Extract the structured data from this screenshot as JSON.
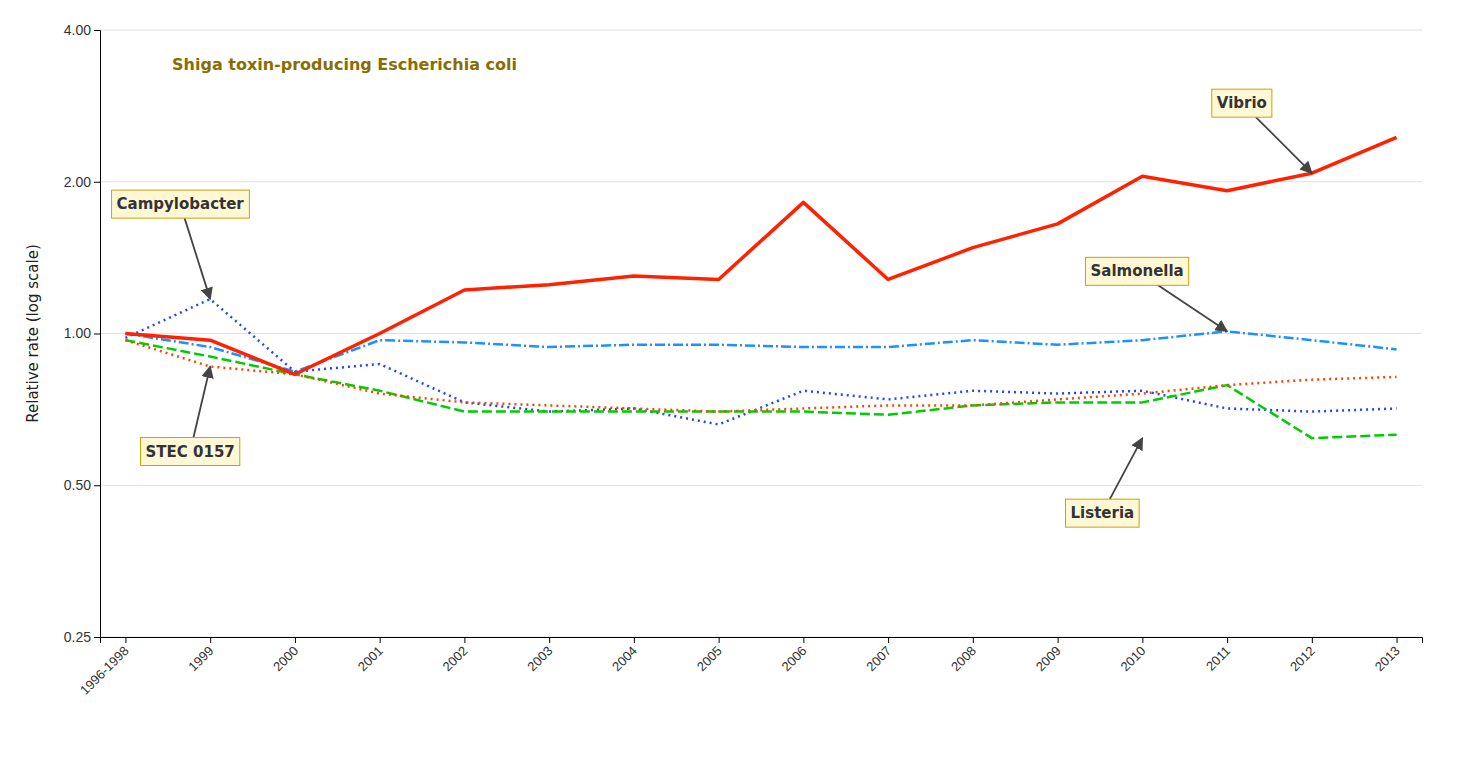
{
  "chart_data": {
    "type": "line",
    "ylabel": "Relative rate (log scale)",
    "categories": [
      "1996-1998",
      "1999",
      "2000",
      "2001",
      "2002",
      "2003",
      "2004",
      "2005",
      "2006",
      "2007",
      "2008",
      "2009",
      "2010",
      "2011",
      "2012",
      "2013"
    ],
    "series": [
      {
        "color": "#1e90ff",
        "line_style": "dashdot",
        "values": [
          1.0,
          0.94,
          0.84,
          0.97,
          0.96,
          0.94,
          0.95,
          0.95,
          0.94,
          0.94,
          0.97,
          0.95,
          0.97,
          1.01,
          0.97,
          0.93
        ]
      },
      {
        "color": "#2244ff",
        "line_style": "dotted",
        "values": [
          0.98,
          1.17,
          0.84,
          0.87,
          0.73,
          0.7,
          0.71,
          0.66,
          0.77,
          0.74,
          0.77,
          0.76,
          0.77,
          0.71,
          0.7,
          0.71
        ]
      },
      {
        "color": "#00cc00",
        "line_style": "dashed",
        "values": [
          0.97,
          0.9,
          0.83,
          0.77,
          0.7,
          0.7,
          0.7,
          0.7,
          0.7,
          0.69,
          0.72,
          0.73,
          0.73,
          0.79,
          0.62,
          0.63
        ]
      },
      {
        "color": "#ff4400",
        "line_style": "dotted",
        "values": [
          0.97,
          0.86,
          0.83,
          0.76,
          0.73,
          0.72,
          0.71,
          0.7,
          0.71,
          0.72,
          0.72,
          0.74,
          0.76,
          0.79,
          0.81,
          0.82
        ]
      },
      {
        "color": "#ff2200",
        "line_style": "solid",
        "values": [
          1.0,
          0.97,
          0.83,
          1.0,
          1.22,
          1.25,
          1.3,
          1.28,
          1.82,
          1.28,
          1.48,
          1.65,
          2.05,
          1.92,
          2.08,
          2.45
        ]
      }
    ],
    "log": "y",
    "ylim": [
      0.25,
      4.0
    ],
    "yticks": [
      0.25,
      {
        "value": 0.5,
        "label": "0.50"
      },
      {
        "value": 1.0,
        "label": "1.00"
      },
      {
        "value": 2.0,
        "label": "2.00"
      },
      {
        "value": 4.0,
        "label": "4.00"
      }
    ],
    "grid": true,
    "annotations": [
      {
        "text": "Shiga toxin-producing Escherichia coli"
      },
      {
        "text": "Vibrio",
        "x": "2012",
        "y": 2.08
      },
      {
        "text": "STEC 0157",
        "x": "1999",
        "y": 0.86
      },
      {
        "text": "Campylobacter",
        "x": "1999",
        "y": 1.17
      },
      {
        "text": "Salmonella",
        "x": "2011",
        "y": 1.01
      },
      {
        "text": "Listeria",
        "x": "2010",
        "y": 0.62
      }
    ]
  }
}
